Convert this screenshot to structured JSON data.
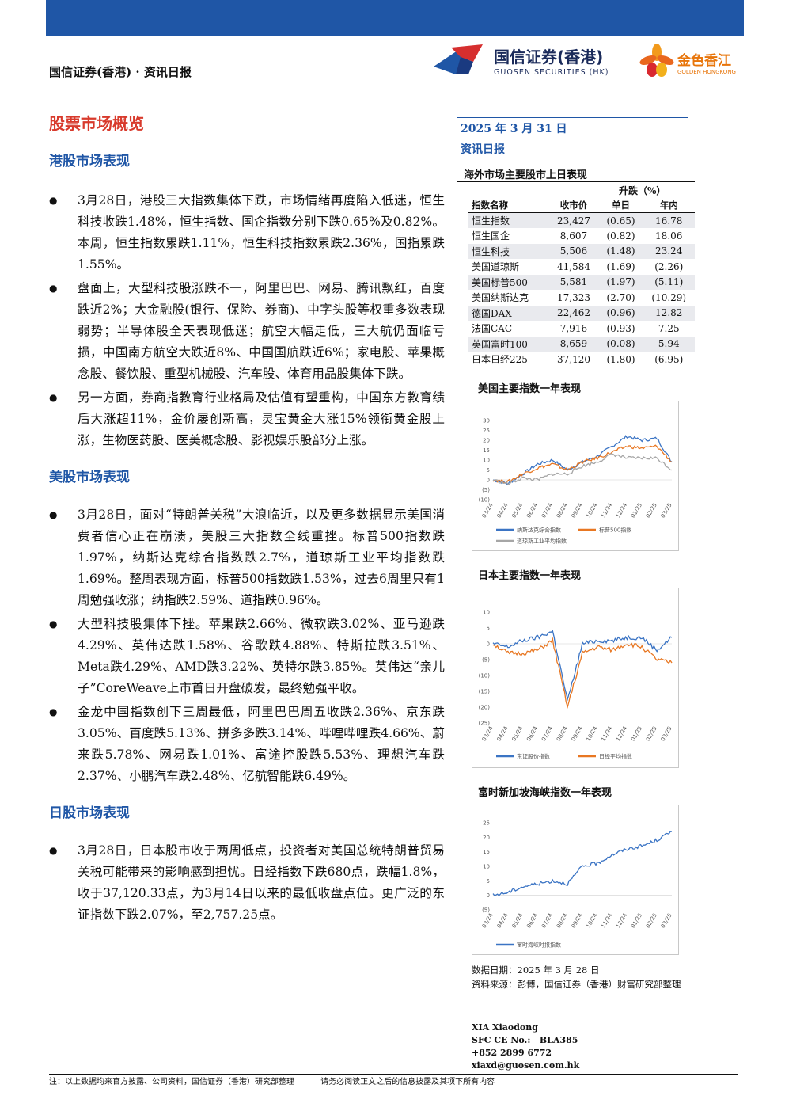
{
  "header": {
    "left_title": "国信证券(香港) · 资讯日报",
    "logo1_name": "国信证券(香港)",
    "logo1_en": "GUOSEN SECURITIES (HK)",
    "logo2_name": "金色香江",
    "logo2_en": "GOLDEN HONGKONG"
  },
  "main": {
    "page_title": "股票市场概览",
    "sections": [
      {
        "title": "港股市场表现",
        "bullets": [
          "3月28日，港股三大指数集体下跌，市场情绪再度陷入低迷，恒生科技收跌1.48%，恒生指数、国企指数分别下跌0.65%及0.82%。本周，恒生指数累跌1.11%，恒生科技指数累跌2.36%，国指累跌1.55%。",
          "盘面上，大型科技股涨跌不一，阿里巴巴、网易、腾讯飘红，百度跌近2%；大金融股(银行、保险、券商)、中字头股等权重多数表现弱势；半导体股全天表现低迷；航空大幅走低，三大航仍面临亏损，中国南方航空大跌近8%、中国国航跌近6%；家电股、苹果概念股、餐饮股、重型机械股、汽车股、体育用品股集体下跌。",
          "另一方面，券商指教育行业格局及估值有望重构，中国东方教育绩后大涨超11%，金价屡创新高，灵宝黄金大涨15%领衔黄金股上涨，生物医药股、医美概念股、影视娱乐股部分上涨。"
        ]
      },
      {
        "title": "美股市场表现",
        "bullets": [
          "3月28日，面对“特朗普关税”大浪临近，以及更多数据显示美国消费者信心正在崩溃，美股三大指数全线重挫。标普500指数跌1.97%，纳斯达克综合指数跌2.7%，道琼斯工业平均指数跌1.69%。整周表现方面，标普500指数跌1.53%，过去6周里只有1周勉强收涨；纳指跌2.59%、道指跌0.96%。",
          "大型科技股集体下挫。苹果跌2.66%、微软跌3.02%、亚马逊跌4.29%、英伟达跌1.58%、谷歌跌4.88%、特斯拉跌3.51%、Meta跌4.29%、AMD跌3.22%、英特尔跌3.85%。英伟达“亲儿子”CoreWeave上市首日开盘破发，最终勉强平收。",
          "金龙中国指数创下三周最低，阿里巴巴周五收跌2.36%、京东跌3.05%、百度跌5.13%、拼多多跌3.14%、哔哩哔哩跌4.66%、蔚来跌5.78%、网易跌1.01%、富途控股跌5.53%、理想汽车跌2.37%、小鹏汽车跌2.48%、亿航智能跌6.49%。"
        ]
      },
      {
        "title": "日股市场表现",
        "bullets": [
          "3月28日，日本股市收于两周低点，投资者对美国总统特朗普贸易关税可能带来的影响感到担忧。日经指数下跌680点，跌幅1.8%，收于37,120.33点，为3月14日以来的最低收盘点位。更广泛的东证指数下跌2.07%，至2,757.25点。"
        ]
      }
    ]
  },
  "side": {
    "date": "2025 年 3 月 31 日",
    "report_type": "资讯日报",
    "table_title": "海外市场主要股市上日表现",
    "change_header": "升跌（%）",
    "columns": [
      "指数名称",
      "收市价",
      "单日",
      "年内"
    ],
    "rows": [
      [
        "恒生指数",
        "23,427",
        "(0.65)",
        "16.78"
      ],
      [
        "恒生国企",
        "8,607",
        "(0.82)",
        "18.06"
      ],
      [
        "恒生科技",
        "5,506",
        "(1.48)",
        "23.24"
      ],
      [
        "美国道琼斯",
        "41,584",
        "(1.69)",
        "(2.26)"
      ],
      [
        "美国标普500",
        "5,581",
        "(1.97)",
        "(5.11)"
      ],
      [
        "美国纳斯达克",
        "17,323",
        "(2.70)",
        "(10.29)"
      ],
      [
        "德国DAX",
        "22,462",
        "(0.96)",
        "12.82"
      ],
      [
        "法国CAC",
        "7,916",
        "(0.93)",
        "7.25"
      ],
      [
        "英国富时100",
        "8,659",
        "(0.08)",
        "5.94"
      ],
      [
        "日本日经225",
        "37,120",
        "(1.80)",
        "(6.95)"
      ]
    ],
    "chart1_title": "美国主要指数一年表现",
    "chart2_title": "日本主要指数一年表现",
    "chart3_title": "富时新加坡海峡指数一年表现",
    "data_date": "数据日期：2025 年 3 月 28 日",
    "data_source": "资料来源：彭博，国信证券（香港）财富研究部整理",
    "contact_name": "XIA Xiaodong",
    "contact_ce": "SFC CE No.:   BLA385",
    "contact_phone": "+852 2899 6772",
    "contact_email": "xiaxd@guosen.com.hk"
  },
  "colors": {
    "brand_blue": "#1f56a6",
    "title_red": "#d83a2c",
    "series_blue": "#3b74c4",
    "series_orange": "#e87722",
    "series_gray": "#a6a6a6"
  },
  "chart_data": [
    {
      "type": "line",
      "title": "",
      "x": [
        "03/24",
        "04/24",
        "05/24",
        "06/24",
        "07/24",
        "08/24",
        "09/24",
        "10/24",
        "11/24",
        "12/24",
        "01/25",
        "02/25",
        "03/25"
      ],
      "ylim": [
        -10,
        30
      ],
      "yticks": [
        "30",
        "25",
        "20",
        "15",
        "10",
        "5",
        "0",
        "(5)",
        "(10)"
      ],
      "series": [
        {
          "name": "纳斯达克综合指数",
          "values": [
            0,
            -2,
            3,
            8,
            10,
            5,
            9,
            12,
            17,
            22,
            20,
            21,
            9
          ]
        },
        {
          "name": "标普500指数",
          "values": [
            0,
            -1,
            3,
            6,
            8,
            5,
            9,
            11,
            14,
            17,
            16,
            17,
            9
          ]
        },
        {
          "name": "道琼斯工业平均指数",
          "values": [
            0,
            -2,
            1,
            0,
            3,
            3,
            7,
            9,
            13,
            11,
            11,
            11,
            5
          ]
        }
      ]
    },
    {
      "type": "line",
      "title": "",
      "x": [
        "03/24",
        "04/24",
        "05/24",
        "06/24",
        "07/24",
        "08/24",
        "09/24",
        "10/24",
        "11/24",
        "12/24",
        "01/25",
        "02/25",
        "03/25"
      ],
      "ylim": [
        -25,
        10
      ],
      "yticks": [
        "10",
        "5",
        "0",
        "(5)",
        "(10)",
        "(15)",
        "(20)",
        "(25)"
      ],
      "series": [
        {
          "name": "东证股价指数",
          "values": [
            0,
            -1,
            1,
            2,
            4,
            -18,
            0,
            1,
            1,
            2,
            2,
            -2,
            2
          ]
        },
        {
          "name": "日经平均指数",
          "values": [
            0,
            -3,
            -3,
            -2,
            1,
            -20,
            -3,
            -1,
            -2,
            0,
            -1,
            -5,
            -6
          ]
        }
      ]
    },
    {
      "type": "line",
      "title": "",
      "x": [
        "03/24",
        "04/24",
        "05/24",
        "06/24",
        "07/24",
        "08/24",
        "09/24",
        "10/24",
        "11/24",
        "12/24",
        "01/25",
        "02/25",
        "03/25"
      ],
      "ylim": [
        -5,
        25
      ],
      "yticks": [
        "25",
        "20",
        "15",
        "10",
        "5",
        "0",
        "(5)"
      ],
      "series": [
        {
          "name": "富时海峡时报指数",
          "values": [
            0,
            1,
            3,
            4,
            5,
            4,
            10,
            11,
            14,
            16,
            17,
            19,
            22
          ]
        }
      ]
    }
  ],
  "footer": {
    "note_left": "注：以上数据均来官方披露、公司资料，国信证券（香港）研究部整理",
    "note_right": "请务必阅读正文之后的信息披露及其项下所有内容"
  }
}
